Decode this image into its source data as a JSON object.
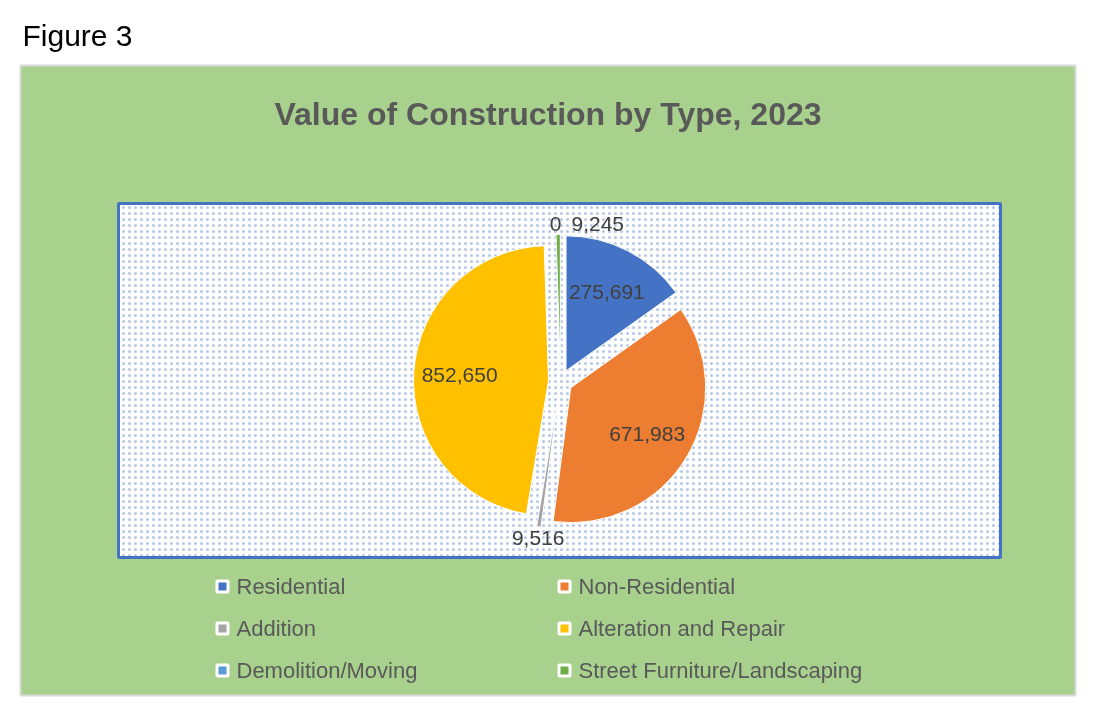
{
  "chart_data": {
    "type": "pie",
    "title": "Value of Construction by Type, 2023",
    "annotations": [
      "Figure 3"
    ],
    "categories": [
      "Residential",
      "Non-Residential",
      "Addition",
      "Alteration and Repair",
      "Demolition/Moving",
      "Street Furniture/Landscaping"
    ],
    "values": [
      275691,
      671983,
      9516,
      852650,
      0,
      9245
    ],
    "value_labels": [
      "275,691",
      "671,983",
      "9,516",
      "852,650",
      "0",
      "9,245"
    ],
    "colors": [
      "#4472c4",
      "#ed7d31",
      "#a5a5a5",
      "#ffc000",
      "#5b9bd5",
      "#70ad47"
    ],
    "legend": "bottom"
  }
}
